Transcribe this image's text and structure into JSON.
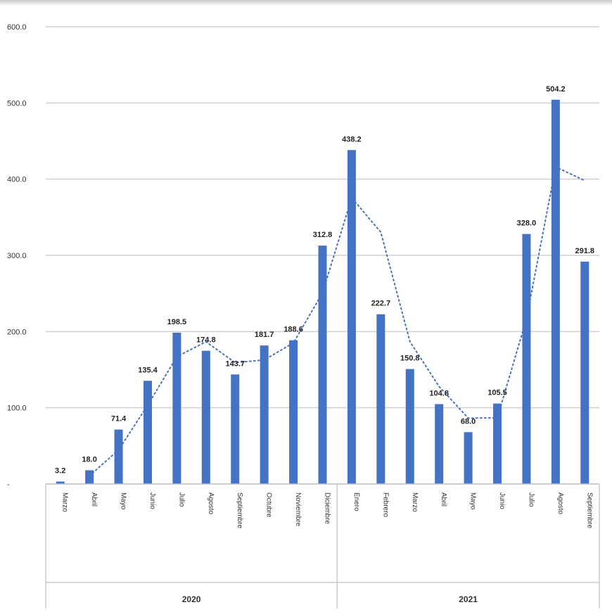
{
  "chart_data": {
    "type": "bar",
    "title": "",
    "xlabel": "",
    "ylabel": "",
    "ylim": [
      0,
      600
    ],
    "yticks": [
      "600.0",
      "500.0",
      "400.0",
      "300.0",
      "200.0",
      "100.0",
      "-"
    ],
    "grid": true,
    "categories": [
      "Marzo",
      "Abril",
      "Mayo",
      "Junio",
      "Julio",
      "Agosto",
      "Septiembre",
      "Octubre",
      "Noviembre",
      "Diciembre",
      "Enero",
      "Febrero",
      "Marzo",
      "Abril",
      "Mayo",
      "Junio",
      "Julio",
      "Agosto",
      "Septiembre"
    ],
    "years": [
      {
        "label": "2020",
        "count": 10
      },
      {
        "label": "2021",
        "count": 9
      }
    ],
    "values": [
      3.2,
      18.0,
      71.4,
      135.4,
      198.5,
      174.8,
      143.7,
      181.7,
      188.6,
      312.8,
      438.2,
      222.7,
      150.8,
      104.8,
      68.0,
      105.5,
      328.0,
      504.2,
      291.8
    ],
    "data_labels": [
      "3.2",
      "18.0",
      "71.4",
      "135.4",
      "198.5",
      "174.8",
      "143.7",
      "181.7",
      "188.6",
      "312.8",
      "438.2",
      "222.7",
      "150.8",
      "104.8",
      "68.0",
      "105.5",
      "328.0",
      "504.2",
      "291.8"
    ],
    "trendline": {
      "style": "dotted",
      "type": "moving-average"
    },
    "bar_color": "#4472c4",
    "trend_color": "#4472c4"
  }
}
